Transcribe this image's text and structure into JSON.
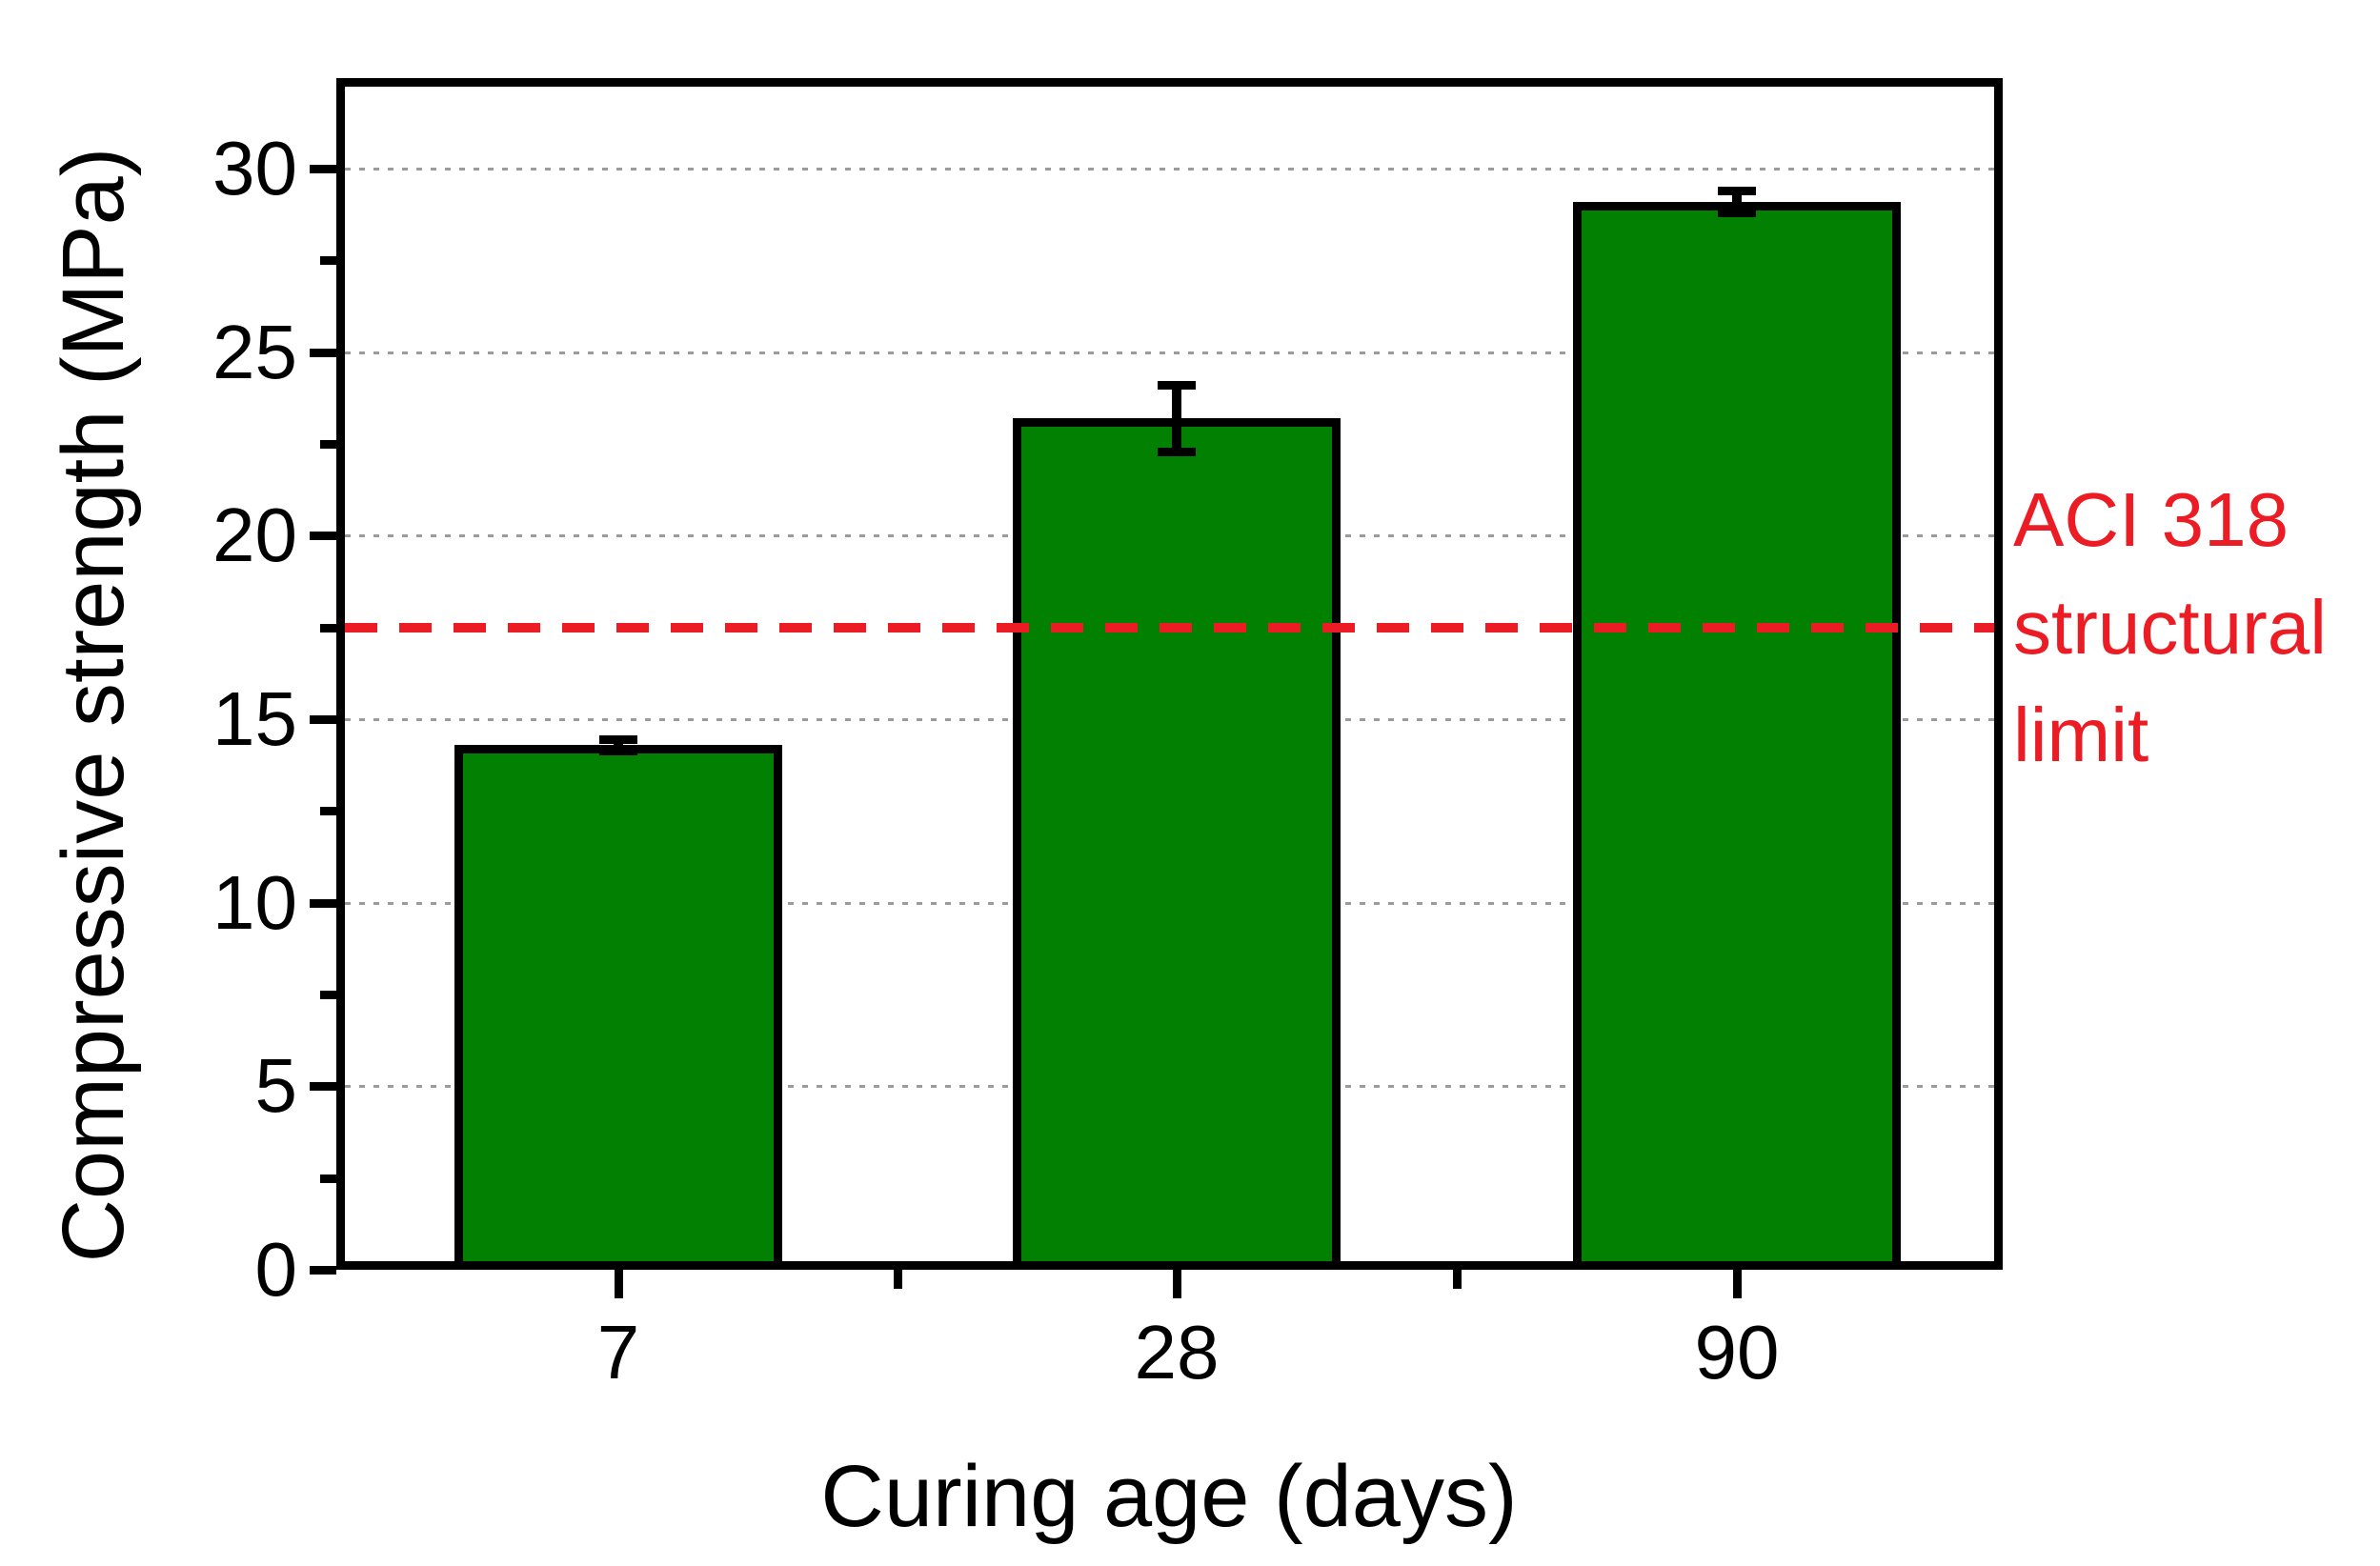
{
  "figure": {
    "background": "#ffffff",
    "y_axis_title": "Compressive strength (MPa)",
    "x_axis_title": "Curing age (days)",
    "annotation": {
      "line1": "ACI 318",
      "line2": "structural",
      "line3": "limit",
      "color": "#ec1c24"
    }
  },
  "chart_data": {
    "type": "bar",
    "categories": [
      "7",
      "28",
      "90"
    ],
    "values": [
      14.3,
      23.2,
      29.1
    ],
    "error_bars": [
      0.15,
      0.9,
      0.3
    ],
    "title": "",
    "xlabel": "Curing age (days)",
    "ylabel": "Compressive strength (MPa)",
    "ylim": [
      0,
      32.5
    ],
    "y_ticks_major": [
      0,
      5,
      10,
      15,
      20,
      25,
      30
    ],
    "y_ticks_minor": [
      2.5,
      7.5,
      12.5,
      17.5,
      22.5,
      27.5
    ],
    "grid": "horizontal dotted gray lines at major y ticks",
    "legend_position": "none",
    "bar_color": "#018001",
    "bar_edge_color": "#000000",
    "grid_color": "#9b9b9b",
    "reference_line": {
      "value": 17.5,
      "label": "ACI 318 structural limit",
      "color": "#ec1c24",
      "style": "dashed"
    }
  }
}
